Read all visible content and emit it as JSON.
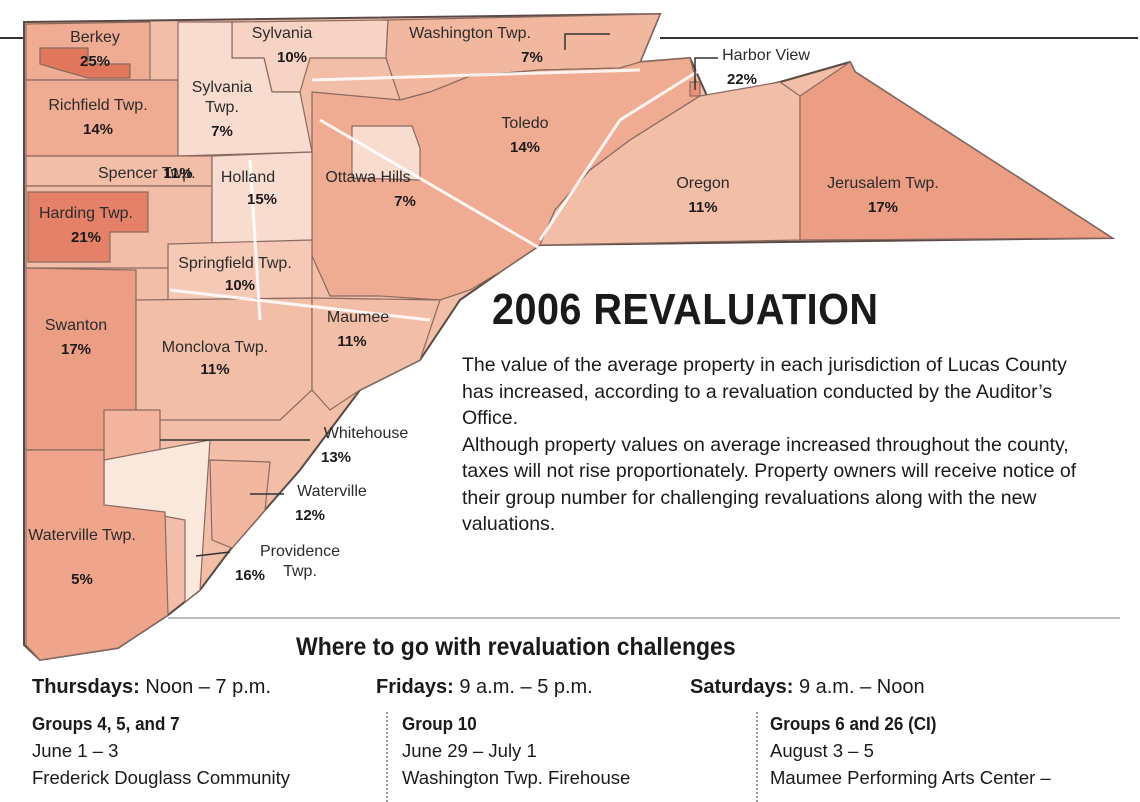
{
  "regions": [
    {
      "name": "Berkey",
      "pct": "25%",
      "color": "#e0775d"
    },
    {
      "name": "Sylvania",
      "pct": "10%",
      "color": "#f6d3c2"
    },
    {
      "name": "Washington Twp.",
      "pct": "7%",
      "color": "#f2b89f"
    },
    {
      "name": "Harbor View",
      "pct": "22%",
      "color": "#e9927a"
    },
    {
      "name": "Richfield Twp.",
      "pct": "14%",
      "color": "#f0ac93"
    },
    {
      "name": "Sylvania Twp.",
      "pct": "7%",
      "color": "#f8dccf"
    },
    {
      "name": "Toledo",
      "pct": "14%",
      "color": "#f0ac93"
    },
    {
      "name": "Spencer Twp.",
      "pct": "11%",
      "color": "#f3bea7"
    },
    {
      "name": "Holland",
      "pct": "15%",
      "color": "#f8dccf"
    },
    {
      "name": "Ottawa Hills",
      "pct": "7%",
      "color": "#f8dccf"
    },
    {
      "name": "Oregon",
      "pct": "11%",
      "color": "#f3bea7"
    },
    {
      "name": "Jerusalem Twp.",
      "pct": "17%",
      "color": "#ec9e85"
    },
    {
      "name": "Harding Twp.",
      "pct": "21%",
      "color": "#e48168"
    },
    {
      "name": "Springfield Twp.",
      "pct": "10%",
      "color": "#f5c9b5"
    },
    {
      "name": "Swanton",
      "pct": "17%",
      "color": "#ec9e85"
    },
    {
      "name": "Monclova Twp.",
      "pct": "11%",
      "color": "#f3bea7"
    },
    {
      "name": "Maumee",
      "pct": "11%",
      "color": "#f3bea7"
    },
    {
      "name": "Whitehouse",
      "pct": "13%",
      "color": "#f2b49c"
    },
    {
      "name": "Waterville",
      "pct": "12%",
      "color": "#f2b89f"
    },
    {
      "name": "Providence Twp.",
      "pct": "16%",
      "color": "#eea58c"
    },
    {
      "name": "Waterville Twp.",
      "pct": "5%",
      "color": "#fbe8dd"
    }
  ],
  "title": "2006 REVALUATION",
  "description": [
    "The value of the average property in each jurisdiction of Lucas County has increased, according to a revaluation conducted by the Auditor’s Office.",
    "Although property values on average increased throughout the county, taxes will not rise proportionately. Property owners will receive notice of their group number for challenging revaluations along with the new valuations."
  ],
  "schedule": {
    "title": "Where to go with revaluation challenges",
    "days": [
      {
        "day": "Thursdays:",
        "hours": "Noon – 7 p.m."
      },
      {
        "day": "Fridays:",
        "hours": "9 a.m. – 5 p.m."
      },
      {
        "day": "Saturdays:",
        "hours": "9 a.m. – Noon"
      }
    ],
    "columns": [
      {
        "group": "Groups 4, 5, and 7",
        "dates": "June 1 – 3",
        "location": "Frederick Douglass Community"
      },
      {
        "group": "Group 10",
        "dates": "June 29 – July 1",
        "location": "Washington Twp. Firehouse"
      },
      {
        "group": "Groups 6 and 26 (CI)",
        "dates": "August 3 – 5",
        "location": "Maumee Performing Arts Center –"
      }
    ]
  },
  "colors": {
    "background": "#ffffff",
    "border": "#5a4a45",
    "road": "#ffffff"
  }
}
